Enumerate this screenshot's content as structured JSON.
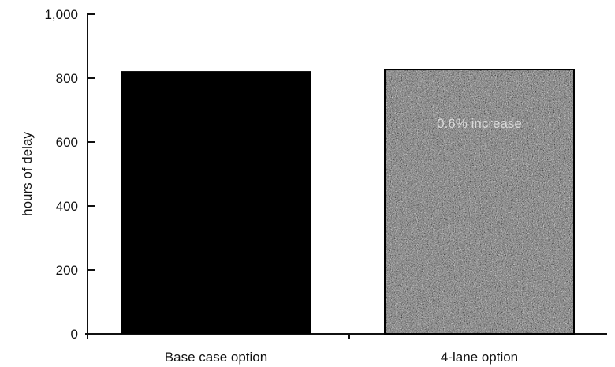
{
  "chart_data": {
    "type": "bar",
    "categories": [
      "Base case option",
      "4-lane option"
    ],
    "values": [
      822,
      827
    ],
    "title": "",
    "xlabel": "",
    "ylabel": "hours of delay",
    "ylim": [
      0,
      1000
    ],
    "yticks": [
      0,
      200,
      400,
      600,
      800,
      1000
    ],
    "ytick_labels": [
      "0",
      "200",
      "400",
      "600",
      "800",
      "1,000"
    ],
    "annotation": "0.6% increase",
    "grid": false,
    "legend": "none",
    "colors": {
      "base_bar": "#000000",
      "lane_bar": "#6f6f6f",
      "axis": "#111111"
    }
  }
}
